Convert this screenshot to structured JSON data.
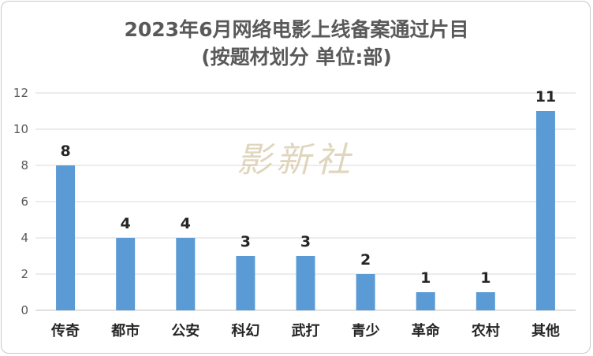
{
  "title_line1": "2023年6月网络电影上线备案通过片目",
  "title_line2": "(按题材划分 单位:部)",
  "watermark": "影新社",
  "chart_data": {
    "type": "bar",
    "title": "2023年6月网络电影上线备案通过片目 (按题材划分 单位:部)",
    "categories": [
      "传奇",
      "都市",
      "公安",
      "科幻",
      "武打",
      "青少",
      "革命",
      "农村",
      "其他"
    ],
    "values": [
      8,
      4,
      4,
      3,
      3,
      2,
      1,
      1,
      11
    ],
    "ylim": [
      0,
      12
    ],
    "yticks": [
      0,
      2,
      4,
      6,
      8,
      10,
      12
    ],
    "grid": true,
    "bar_color": "#5b9bd5"
  }
}
